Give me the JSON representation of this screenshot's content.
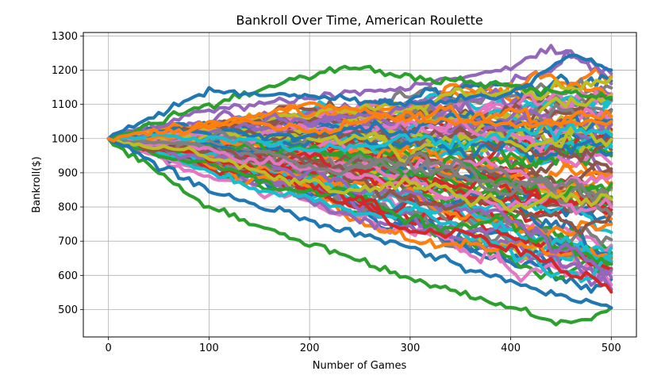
{
  "chart_data": {
    "type": "line",
    "title": "Bankroll Over Time, American Roulette",
    "xlabel": "Number of Games",
    "ylabel": "Bankroll($)",
    "xlim": [
      -25,
      525
    ],
    "ylim": [
      420,
      1310
    ],
    "xticks": [
      0,
      100,
      200,
      300,
      400,
      500
    ],
    "yticks": [
      500,
      600,
      700,
      800,
      900,
      1000,
      1100,
      1200,
      1300
    ],
    "grid": true,
    "legend": "none",
    "colors": [
      "#1f77b4",
      "#ff7f0e",
      "#2ca02c",
      "#d62728",
      "#9467bd",
      "#8c564b",
      "#e377c2",
      "#7f7f7f",
      "#bcbd22",
      "#17becf"
    ],
    "series_count": 100,
    "x": [
      0,
      500
    ],
    "start_value": 1000,
    "games": 500,
    "endpoint_range": [
      500,
      1200
    ],
    "series": [
      {
        "color": "#2ca02c",
        "x": [
          0,
          100,
          200,
          300,
          400,
          450,
          480,
          500
        ],
        "values": [
          1000,
          800,
          690,
          590,
          510,
          460,
          470,
          505
        ]
      },
      {
        "color": "#1f77b4",
        "x": [
          0,
          100,
          200,
          300,
          400,
          450,
          480,
          500
        ],
        "values": [
          1000,
          850,
          760,
          680,
          580,
          540,
          520,
          505
        ]
      },
      {
        "color": "#9467bd",
        "x": [
          0,
          100,
          200,
          300,
          400,
          440,
          480,
          500
        ],
        "values": [
          1000,
          1080,
          1120,
          1150,
          1210,
          1265,
          1220,
          1190
        ]
      },
      {
        "color": "#2ca02c",
        "x": [
          0,
          100,
          200,
          240,
          300,
          400,
          500
        ],
        "values": [
          1000,
          1100,
          1180,
          1210,
          1180,
          1150,
          1120
        ]
      },
      {
        "color": "#1f77b4",
        "x": [
          0,
          100,
          200,
          300,
          400,
          460,
          500
        ],
        "values": [
          1000,
          1140,
          1120,
          1100,
          1130,
          1245,
          1200
        ]
      },
      {
        "color": "#ff7f0e",
        "x": [
          0,
          100,
          200,
          300,
          400,
          500
        ],
        "values": [
          1000,
          1040,
          1100,
          1060,
          1040,
          1050
        ]
      }
    ]
  }
}
